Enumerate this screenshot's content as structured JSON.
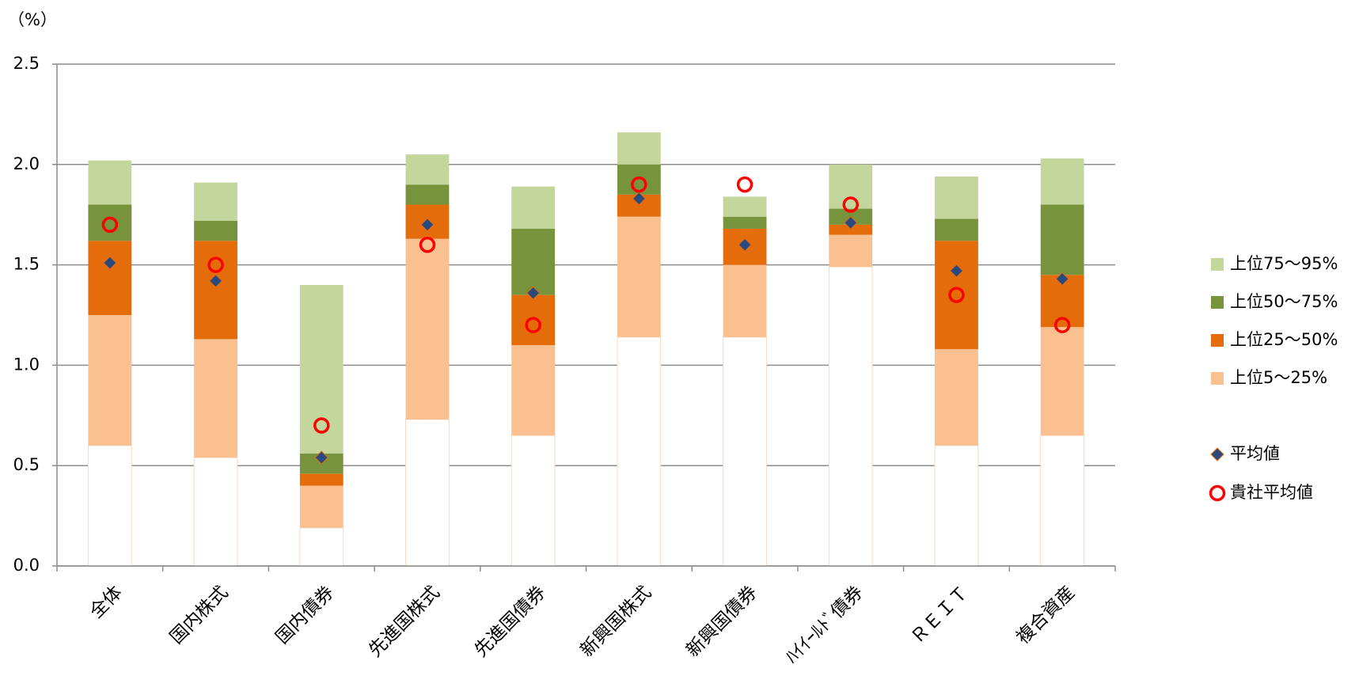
{
  "chart_data": {
    "type": "floating-stacked-bar",
    "y_label": "（%）",
    "categories": [
      "全体",
      "国内株式",
      "国内債券",
      "先進国株式",
      "先進国債券",
      "新興国株式",
      "新興国債券",
      "ﾊｲｲｰﾙﾄﾞ債券",
      "ＲＥＩＴ",
      "複合資産"
    ],
    "series": [
      {
        "color": "#ffffff",
        "values": [
          0.6,
          0.54,
          0.19,
          0.73,
          0.65,
          1.14,
          1.14,
          1.49,
          0.6,
          0.65
        ]
      },
      {
        "name": "上位5～25%",
        "color": "#fac090",
        "values": [
          0.65,
          0.59,
          0.21,
          0.9,
          0.45,
          0.6,
          0.36,
          0.16,
          0.48,
          0.54
        ]
      },
      {
        "name": "上位25～50%",
        "color": "#e46c0a",
        "values": [
          0.37,
          0.49,
          0.06,
          0.17,
          0.25,
          0.11,
          0.18,
          0.05,
          0.54,
          0.26
        ]
      },
      {
        "name": "上位50～75%",
        "color": "#77933c",
        "values": [
          0.18,
          0.1,
          0.1,
          0.1,
          0.33,
          0.15,
          0.06,
          0.08,
          0.11,
          0.35
        ]
      },
      {
        "name": "上位75～95%",
        "color": "#c3d69b",
        "values": [
          0.22,
          0.19,
          0.84,
          0.15,
          0.21,
          0.16,
          0.1,
          0.22,
          0.21,
          0.23
        ]
      }
    ],
    "points": [
      {
        "name": "平均値",
        "marker": "diamond",
        "color": "#2a4a7f",
        "values": [
          1.51,
          1.42,
          0.54,
          1.7,
          1.36,
          1.83,
          1.6,
          1.71,
          1.47,
          1.43
        ]
      },
      {
        "name": "貴社平均値",
        "marker": "circle",
        "color": "#ff0000",
        "values": [
          1.7,
          1.5,
          0.7,
          1.6,
          1.2,
          1.9,
          1.9,
          1.8,
          1.35,
          1.2
        ]
      }
    ],
    "ylim": [
      0,
      2.5
    ],
    "yticks": [
      {
        "value": 0,
        "label": "0.0"
      },
      0.5,
      {
        "value": 1,
        "label": "1.0"
      },
      1.5,
      {
        "value": 2,
        "label": "2.0"
      },
      2.5
    ],
    "grid": true
  }
}
